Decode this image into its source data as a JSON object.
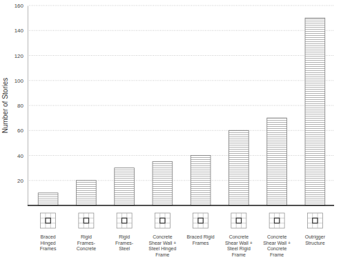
{
  "chart_data": {
    "type": "bar",
    "y_label": "Number of Stories",
    "categories": [
      "Braced Hinged Frames",
      "Rigid Frames-Concrete",
      "Rigid Frames-Steel",
      "Concrete Shear Wall + Steel Hinged Frame",
      "Braced Rigid Frames",
      "Concrete Shear Wall + Steel Rigid Frame",
      "Concrete Shear Wall + Concrete Frame",
      "Outrigger Structure"
    ],
    "values": [
      10,
      20,
      30,
      35,
      40,
      60,
      70,
      150
    ],
    "color": "#7a7a7a",
    "ylim": [
      0,
      160
    ],
    "yticks": [
      20,
      40,
      60,
      80,
      100,
      120,
      140,
      160
    ],
    "grid": true
  }
}
